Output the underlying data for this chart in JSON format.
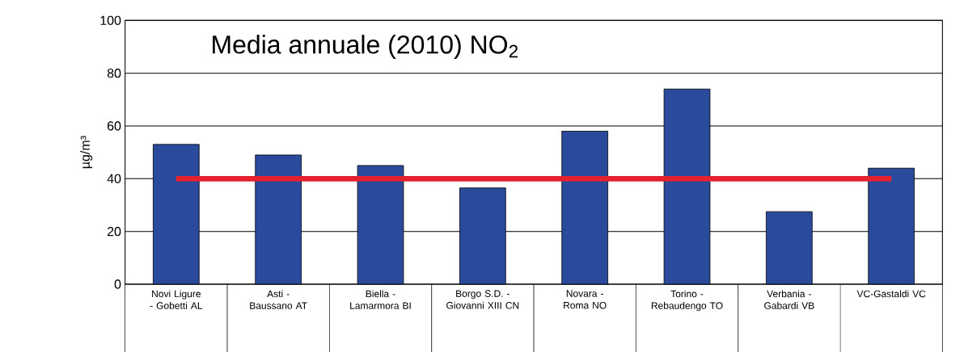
{
  "chart_data": {
    "type": "bar",
    "title": "Media annuale (2010) NO$_{2}$",
    "ylabel": "µg/m³",
    "categories": [
      "Novi Ligure - Gobetti AL",
      "Asti - Baussano AT",
      "Biella - Lamarmora BI",
      "Borgo S.D. - Giovanni XIII CN",
      "Novara - Roma NO",
      "Torino - Rebaudengo TO",
      "Verbania - Gabardi VB",
      "VC-Gastaldi VC"
    ],
    "values": [
      53,
      49,
      45,
      36.5,
      58,
      74,
      27.5,
      44
    ],
    "color": "#2a4b9b",
    "ylim": [
      0,
      100
    ],
    "yticks": [
      0,
      20,
      40,
      60,
      80,
      100
    ],
    "grid": "y",
    "ref_lines": [
      {
        "axis": "y",
        "value": 40,
        "color": "#e3212f"
      }
    ]
  }
}
